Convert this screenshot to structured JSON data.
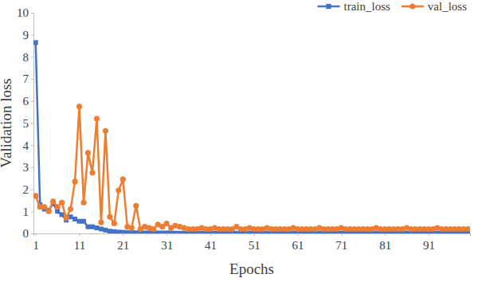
{
  "chart_data": {
    "type": "line",
    "x_label": "Epochs",
    "y_label": "Validation loss",
    "x": [
      1,
      2,
      3,
      4,
      5,
      6,
      7,
      8,
      9,
      10,
      11,
      12,
      13,
      14,
      15,
      16,
      17,
      18,
      19,
      20,
      21,
      22,
      23,
      24,
      25,
      26,
      27,
      28,
      29,
      30,
      31,
      32,
      33,
      34,
      35,
      36,
      37,
      38,
      39,
      40,
      41,
      42,
      43,
      44,
      45,
      46,
      47,
      48,
      49,
      50,
      51,
      52,
      53,
      54,
      55,
      56,
      57,
      58,
      59,
      60,
      61,
      62,
      63,
      64,
      65,
      66,
      67,
      68,
      69,
      70,
      71,
      72,
      73,
      74,
      75,
      76,
      77,
      78,
      79,
      80,
      81,
      82,
      83,
      84,
      85,
      86,
      87,
      88,
      89,
      90,
      91,
      92,
      93,
      94,
      95,
      96,
      97,
      98,
      99,
      100
    ],
    "xlim": [
      0.5,
      100.5
    ],
    "xticks": [
      1,
      11,
      21,
      31,
      41,
      51,
      61,
      71,
      81,
      91
    ],
    "ylim": [
      0,
      10
    ],
    "yticks": [
      0,
      1,
      2,
      3,
      4,
      5,
      6,
      7,
      8,
      9,
      10
    ],
    "grid": false,
    "legend": "top-right",
    "series": [
      {
        "name": "train_loss",
        "color": "#4472c4",
        "marker": "square",
        "line_style": "solid",
        "values": [
          8.65,
          1.3,
          1.1,
          1.05,
          1.35,
          1.0,
          0.85,
          0.6,
          0.75,
          0.65,
          0.55,
          0.55,
          0.3,
          0.3,
          0.25,
          0.2,
          0.15,
          0.1,
          0.08,
          0.06,
          0.05,
          0.04,
          0.03,
          0.03,
          0.03,
          0.02,
          0.02,
          0.02,
          0.02,
          0.02,
          0.02,
          0.02,
          0.01,
          0.01,
          0.01,
          0.01,
          0.01,
          0.01,
          0.01,
          0.01,
          0.01,
          0.01,
          0.01,
          0.01,
          0.01,
          0.01,
          0.01,
          0.01,
          0.01,
          0.01,
          0.01,
          0.01,
          0.01,
          0.01,
          0.01,
          0.01,
          0.01,
          0.01,
          0.01,
          0.01,
          0.01,
          0.01,
          0.01,
          0.01,
          0.01,
          0.01,
          0.01,
          0.01,
          0.01,
          0.01,
          0.01,
          0.01,
          0.01,
          0.01,
          0.01,
          0.01,
          0.01,
          0.01,
          0.01,
          0.01,
          0.01,
          0.01,
          0.01,
          0.01,
          0.01,
          0.01,
          0.01,
          0.01,
          0.01,
          0.01,
          0.01,
          0.01,
          0.01,
          0.01,
          0.01,
          0.01,
          0.01,
          0.01,
          0.01,
          0.01
        ]
      },
      {
        "name": "val_loss",
        "color": "#ed7d31",
        "marker": "circle",
        "line_style": "solid",
        "values": [
          1.7,
          1.2,
          1.2,
          1.0,
          1.45,
          1.2,
          1.4,
          0.7,
          1.1,
          2.35,
          5.75,
          1.4,
          3.65,
          2.75,
          5.2,
          0.5,
          4.65,
          0.75,
          0.45,
          1.95,
          2.45,
          0.3,
          0.25,
          1.25,
          0.2,
          0.3,
          0.25,
          0.2,
          0.4,
          0.3,
          0.45,
          0.25,
          0.35,
          0.3,
          0.25,
          0.2,
          0.2,
          0.2,
          0.25,
          0.2,
          0.2,
          0.25,
          0.2,
          0.2,
          0.2,
          0.2,
          0.3,
          0.2,
          0.2,
          0.25,
          0.2,
          0.2,
          0.2,
          0.25,
          0.2,
          0.2,
          0.2,
          0.2,
          0.2,
          0.25,
          0.2,
          0.2,
          0.2,
          0.2,
          0.2,
          0.25,
          0.2,
          0.2,
          0.2,
          0.2,
          0.25,
          0.2,
          0.2,
          0.2,
          0.2,
          0.2,
          0.2,
          0.2,
          0.25,
          0.2,
          0.2,
          0.2,
          0.2,
          0.2,
          0.2,
          0.25,
          0.2,
          0.2,
          0.2,
          0.2,
          0.2,
          0.2,
          0.25,
          0.2,
          0.2,
          0.2,
          0.2,
          0.2,
          0.2,
          0.2
        ]
      }
    ]
  }
}
